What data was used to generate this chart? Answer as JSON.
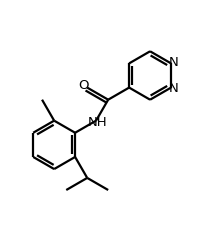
{
  "background_color": "#ffffff",
  "line_color": "#000000",
  "line_width": 1.6,
  "font_size": 9.5,
  "figsize": [
    2.16,
    2.52
  ],
  "dpi": 100,
  "xlim": [
    0.0,
    1.0
  ],
  "ylim": [
    0.0,
    1.0
  ]
}
